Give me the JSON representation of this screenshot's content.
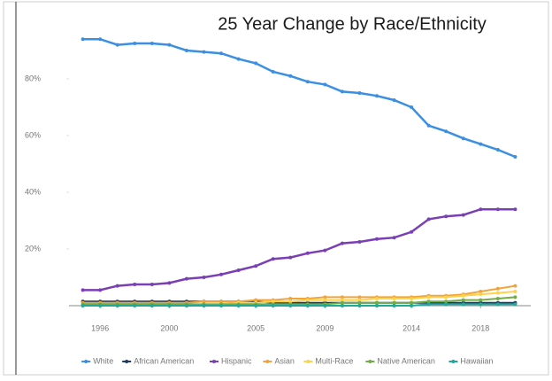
{
  "chart_data": {
    "type": "line",
    "title": "25 Year Change by Race/Ethnicity",
    "x": [
      1995,
      1996,
      1997,
      1998,
      1999,
      2000,
      2001,
      2002,
      2003,
      2004,
      2005,
      2006,
      2007,
      2008,
      2009,
      2010,
      2011,
      2012,
      2013,
      2014,
      2015,
      2016,
      2017,
      2018,
      2019,
      2020
    ],
    "xlim": [
      1994.2,
      2020.9
    ],
    "xticks": [
      1996,
      2000,
      2005,
      2009,
      2014,
      2018
    ],
    "ylim": [
      0,
      100
    ],
    "yticks": [
      {
        "value": 20,
        "label": "20%"
      },
      {
        "value": 40,
        "label": "40%"
      },
      {
        "value": 60,
        "label": "60%"
      },
      {
        "value": 80,
        "label": "80%"
      }
    ],
    "legend": "bottom",
    "series": [
      {
        "name": "White",
        "color": "#3b8fe3",
        "values": [
          94,
          94,
          92,
          92.5,
          92.5,
          92,
          90,
          89.5,
          89,
          87,
          85.5,
          82.5,
          81,
          79,
          78,
          75.5,
          75,
          74,
          72.5,
          70,
          63.5,
          61.5,
          59,
          57,
          55,
          52.5
        ]
      },
      {
        "name": "African American",
        "color": "#1f3864",
        "values": [
          1.5,
          1.5,
          1.5,
          1.5,
          1.5,
          1.5,
          1.5,
          1.5,
          1.5,
          1.5,
          1.5,
          1,
          1,
          1,
          1,
          1,
          1,
          1,
          1,
          1,
          1,
          1,
          1,
          1,
          1,
          1
        ]
      },
      {
        "name": "Hispanic",
        "color": "#7a3fb5",
        "values": [
          5.5,
          5.5,
          7,
          7.5,
          7.5,
          8,
          9.5,
          10,
          11,
          12.5,
          14,
          16.5,
          17,
          18.5,
          19.5,
          22,
          22.5,
          23.5,
          24,
          26,
          30.5,
          31.5,
          32,
          34,
          34,
          34
        ]
      },
      {
        "name": "Asian",
        "color": "#f2a33a",
        "values": [
          1,
          1,
          1,
          1,
          1,
          1,
          1,
          1.5,
          1.5,
          1.5,
          2,
          2,
          2.5,
          2.5,
          3,
          3,
          3,
          3,
          3,
          3,
          3.5,
          3.5,
          4,
          5,
          6,
          7
        ]
      },
      {
        "name": "Multi-Race",
        "color": "#ffd24a",
        "values": [
          0,
          0,
          0,
          0,
          0,
          0,
          0,
          0.5,
          0.5,
          1,
          1,
          1.5,
          1.5,
          2,
          2,
          2,
          2,
          2.5,
          2.5,
          2.5,
          3,
          3,
          3.5,
          4,
          4.5,
          5
        ]
      },
      {
        "name": "Native American",
        "color": "#70ad47",
        "values": [
          0.5,
          0.5,
          0.5,
          0.5,
          0.5,
          0.5,
          0.5,
          0.5,
          0.5,
          0.5,
          0.5,
          0.5,
          0.5,
          0.5,
          0.5,
          1,
          1,
          1,
          1,
          1,
          1.5,
          1.5,
          2,
          2,
          2.5,
          3
        ]
      },
      {
        "name": "Hawaiian",
        "color": "#1fa89a",
        "values": [
          0,
          0,
          0,
          0,
          0,
          0,
          0,
          0,
          0,
          0,
          0,
          0,
          0,
          0,
          0,
          0,
          0,
          0,
          0,
          0,
          0.5,
          0.5,
          0.5,
          0.5,
          0.5,
          0.5
        ]
      }
    ]
  }
}
